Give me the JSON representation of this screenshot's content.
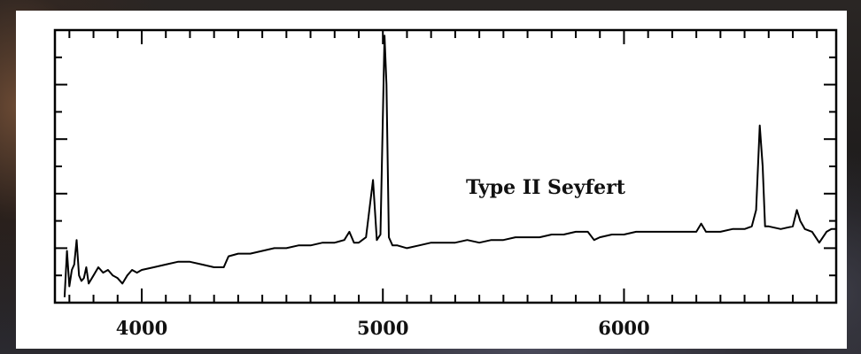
{
  "chart_data": {
    "type": "line",
    "title": "",
    "xlabel": "",
    "ylabel": "",
    "xlim": [
      3640,
      6880
    ],
    "ylim": [
      0,
      10
    ],
    "x_ticks": [
      4000,
      5000,
      6000
    ],
    "x_tick_labels": [
      "4000",
      "5000",
      "6000"
    ],
    "annotation": "Type II Seyfert",
    "series_color": "#000000",
    "series": [
      {
        "x": [
          3680,
          3690,
          3700,
          3710,
          3720,
          3730,
          3740,
          3750,
          3760,
          3770,
          3780,
          3800,
          3820,
          3840,
          3860,
          3880,
          3900,
          3920,
          3940,
          3960,
          3980,
          4000,
          4050,
          4100,
          4150,
          4200,
          4250,
          4300,
          4340,
          4360,
          4400,
          4450,
          4500,
          4550,
          4600,
          4650,
          4700,
          4750,
          4800,
          4840,
          4861,
          4880,
          4900,
          4930,
          4959,
          4975,
          4990,
          5007,
          5015,
          5025,
          5040,
          5060,
          5100,
          5150,
          5200,
          5250,
          5300,
          5350,
          5400,
          5450,
          5500,
          5550,
          5600,
          5650,
          5700,
          5750,
          5800,
          5850,
          5876,
          5900,
          5950,
          6000,
          6050,
          6100,
          6150,
          6200,
          6250,
          6300,
          6320,
          6340,
          6400,
          6450,
          6500,
          6530,
          6548,
          6563,
          6575,
          6585,
          6600,
          6650,
          6700,
          6717,
          6731,
          6750,
          6780,
          6810,
          6840,
          6860,
          6880
        ],
        "y": [
          0.2,
          1.9,
          0.6,
          1.2,
          1.4,
          2.3,
          1.0,
          0.8,
          0.9,
          1.3,
          0.7,
          1.0,
          1.3,
          1.1,
          1.2,
          1.0,
          0.9,
          0.7,
          1.0,
          1.2,
          1.1,
          1.2,
          1.3,
          1.4,
          1.5,
          1.5,
          1.4,
          1.3,
          1.3,
          1.7,
          1.8,
          1.8,
          1.9,
          2.0,
          2.0,
          2.1,
          2.1,
          2.2,
          2.2,
          2.3,
          2.6,
          2.2,
          2.2,
          2.4,
          4.5,
          2.3,
          2.5,
          9.8,
          8.0,
          2.4,
          2.1,
          2.1,
          2.0,
          2.1,
          2.2,
          2.2,
          2.2,
          2.3,
          2.2,
          2.3,
          2.3,
          2.4,
          2.4,
          2.4,
          2.5,
          2.5,
          2.6,
          2.6,
          2.3,
          2.4,
          2.5,
          2.5,
          2.6,
          2.6,
          2.6,
          2.6,
          2.6,
          2.6,
          2.9,
          2.6,
          2.6,
          2.7,
          2.7,
          2.8,
          3.4,
          6.5,
          5.0,
          2.8,
          2.8,
          2.7,
          2.8,
          3.4,
          3.0,
          2.7,
          2.6,
          2.2,
          2.6,
          2.7,
          2.7
        ]
      }
    ]
  }
}
